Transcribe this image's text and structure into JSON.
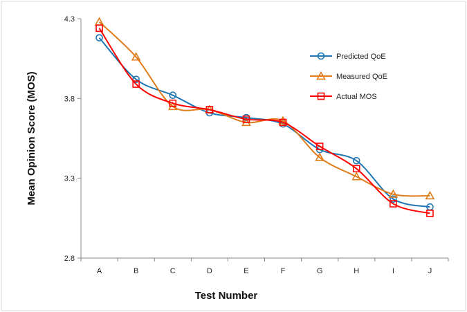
{
  "chart_data": {
    "type": "line",
    "xlabel": "Test Number",
    "ylabel": "Mean Opinion Score (MOS)",
    "categories": [
      "A",
      "B",
      "C",
      "D",
      "E",
      "F",
      "G",
      "H",
      "I",
      "J"
    ],
    "ylim": [
      2.8,
      4.3
    ],
    "yticks": [
      "2.8",
      "3.3",
      "3.8",
      "4.3"
    ],
    "grid": false,
    "legend_position": "top-right",
    "series": [
      {
        "name": "Predicted QoE",
        "color": "#1f77b4",
        "marker": "circle",
        "values": [
          4.18,
          3.92,
          3.82,
          3.71,
          3.68,
          3.64,
          3.48,
          3.41,
          3.17,
          3.12
        ]
      },
      {
        "name": "Measured QoE",
        "color": "#e07b1a",
        "marker": "triangle",
        "values": [
          4.28,
          4.06,
          3.75,
          3.73,
          3.65,
          3.66,
          3.43,
          3.31,
          3.2,
          3.19
        ]
      },
      {
        "name": "Actual MOS",
        "color": "#ff0000",
        "marker": "square",
        "values": [
          4.24,
          3.89,
          3.77,
          3.73,
          3.67,
          3.65,
          3.5,
          3.36,
          3.14,
          3.08
        ]
      }
    ]
  }
}
